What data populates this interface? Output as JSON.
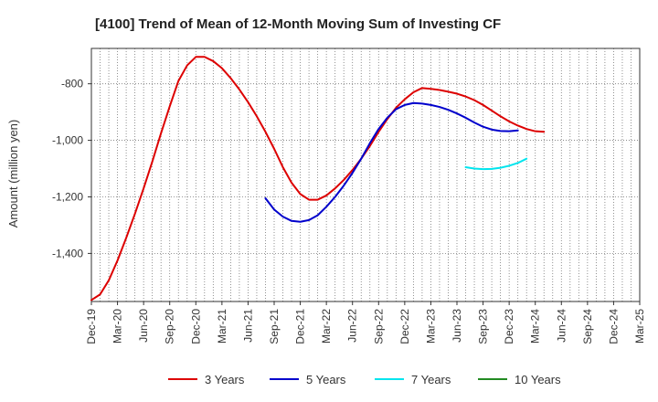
{
  "chart_data": {
    "type": "line",
    "title": "[4100]  Trend of Mean of 12-Month Moving Sum of Investing CF",
    "xlabel": "",
    "ylabel": "Amount (million yen)",
    "ylim": [
      -1570,
      -675
    ],
    "y_ticks": [
      -800,
      -1000,
      -1200,
      -1400
    ],
    "y_tick_labels": [
      "-800",
      "-1,000",
      "-1,200",
      "-1,400"
    ],
    "x_tick_labels": [
      "Dec-19",
      "Mar-20",
      "Jun-20",
      "Sep-20",
      "Dec-20",
      "Mar-21",
      "Jun-21",
      "Sep-21",
      "Dec-21",
      "Mar-22",
      "Jun-22",
      "Sep-22",
      "Dec-22",
      "Mar-23",
      "Jun-23",
      "Sep-23",
      "Dec-23",
      "Mar-24",
      "Jun-24",
      "Sep-24",
      "Dec-24",
      "Mar-25"
    ],
    "months": 63,
    "grid": true,
    "legend_position": "bottom",
    "series": [
      {
        "name": "3 Years",
        "color": "#dd0000",
        "start_month": 0,
        "values": [
          -1565,
          -1545,
          -1495,
          -1425,
          -1345,
          -1260,
          -1170,
          -1075,
          -975,
          -880,
          -790,
          -735,
          -705,
          -705,
          -720,
          -745,
          -780,
          -820,
          -865,
          -915,
          -970,
          -1030,
          -1095,
          -1150,
          -1190,
          -1210,
          -1210,
          -1195,
          -1170,
          -1140,
          -1105,
          -1065,
          -1020,
          -970,
          -925,
          -885,
          -855,
          -830,
          -815,
          -818,
          -822,
          -828,
          -835,
          -845,
          -858,
          -875,
          -895,
          -915,
          -933,
          -948,
          -960,
          -968,
          -970
        ]
      },
      {
        "name": "5 Years",
        "color": "#0000cc",
        "start_month": 20,
        "values": [
          -1205,
          -1245,
          -1270,
          -1285,
          -1288,
          -1282,
          -1265,
          -1235,
          -1200,
          -1160,
          -1115,
          -1065,
          -1010,
          -960,
          -920,
          -890,
          -875,
          -868,
          -870,
          -875,
          -882,
          -892,
          -905,
          -920,
          -937,
          -952,
          -962,
          -967,
          -968,
          -965
        ]
      },
      {
        "name": "7 Years",
        "color": "#00e5ee",
        "start_month": 43,
        "values": [
          -1095,
          -1100,
          -1102,
          -1101,
          -1097,
          -1090,
          -1080,
          -1065
        ]
      },
      {
        "name": "10 Years",
        "color": "#228b22",
        "start_month": 0,
        "values": []
      }
    ]
  }
}
